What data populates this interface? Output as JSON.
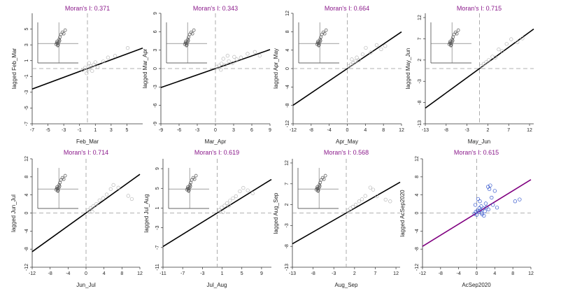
{
  "chart_data": [
    {
      "type": "scatter",
      "title": "Moran's I: 0.371",
      "xlabel": "Feb_Mar",
      "ylabel": "lagged Feb_Mar",
      "xlim": [
        -7,
        7
      ],
      "ylim": [
        -7,
        7
      ],
      "xticks": [
        -7,
        -5,
        -3,
        -1,
        1,
        3,
        5
      ],
      "yticks": [
        -7,
        -5,
        -3,
        -1,
        1,
        3,
        5
      ],
      "slope": 0.371,
      "color": "#000000",
      "points": [
        [
          -0.6,
          -0.2
        ],
        [
          -0.3,
          0.1
        ],
        [
          0.1,
          -0.1
        ],
        [
          0.4,
          0.3
        ],
        [
          0.8,
          0.5
        ],
        [
          1.3,
          0.2
        ],
        [
          2.0,
          0.9
        ],
        [
          2.6,
          1.4
        ],
        [
          3.5,
          1.6
        ],
        [
          5.1,
          2.6
        ],
        [
          0.2,
          0.7
        ],
        [
          -0.1,
          -0.6
        ],
        [
          0.6,
          -0.3
        ],
        [
          1.0,
          0.8
        ]
      ],
      "inset_points": [
        [
          -0.4,
          -0.1
        ],
        [
          -0.3,
          0.1
        ],
        [
          -0.2,
          0.0
        ],
        [
          -0.1,
          -0.2
        ],
        [
          0.0,
          0.2
        ],
        [
          0.05,
          0.6
        ],
        [
          0.15,
          0.9
        ],
        [
          0.3,
          1.3
        ],
        [
          0.5,
          1.6
        ],
        [
          0.7,
          1.4
        ],
        [
          0.9,
          1.9
        ],
        [
          -0.25,
          0.3
        ],
        [
          -0.15,
          -0.3
        ],
        [
          0.1,
          0.4
        ]
      ]
    },
    {
      "type": "scatter",
      "title": "Moran's I: 0.343",
      "xlabel": "Mar_Apr",
      "ylabel": "lagged Mar_Apr",
      "xlim": [
        -9,
        9
      ],
      "ylim": [
        -9,
        9
      ],
      "xticks": [
        -9,
        -6,
        -3,
        0,
        3,
        6,
        9
      ],
      "yticks": [
        -9,
        -6,
        -3,
        0,
        3,
        6,
        9
      ],
      "slope": 0.343,
      "color": "#000000",
      "points": [
        [
          0.2,
          0.3
        ],
        [
          0.6,
          0.5
        ],
        [
          1.0,
          0.8
        ],
        [
          1.6,
          0.6
        ],
        [
          2.2,
          1.2
        ],
        [
          2.8,
          0.9
        ],
        [
          3.5,
          1.5
        ],
        [
          4.2,
          1.8
        ],
        [
          5.3,
          2.4
        ],
        [
          6.5,
          2.7
        ],
        [
          7.3,
          2.1
        ],
        [
          1.3,
          1.6
        ],
        [
          0.9,
          -0.2
        ],
        [
          2.0,
          2.1
        ],
        [
          3.1,
          1.9
        ]
      ],
      "inset_points": [
        [
          -0.4,
          -0.1
        ],
        [
          -0.3,
          0.1
        ],
        [
          -0.2,
          0.0
        ],
        [
          -0.1,
          -0.2
        ],
        [
          0.0,
          0.2
        ],
        [
          0.05,
          0.6
        ],
        [
          0.15,
          0.9
        ],
        [
          0.3,
          1.3
        ],
        [
          0.5,
          1.6
        ],
        [
          0.7,
          1.4
        ],
        [
          0.9,
          1.9
        ],
        [
          -0.25,
          0.3
        ],
        [
          -0.15,
          -0.3
        ],
        [
          0.1,
          0.4
        ]
      ]
    },
    {
      "type": "scatter",
      "title": "Moran's I: 0.664",
      "xlabel": "Apr_May",
      "ylabel": "lagged Apr_May",
      "xlim": [
        -12,
        12
      ],
      "ylim": [
        -12,
        12
      ],
      "xticks": [
        -12,
        -8,
        -4,
        0,
        4,
        8,
        12
      ],
      "yticks": [
        -12,
        -8,
        -4,
        0,
        4,
        8,
        12
      ],
      "slope": 0.664,
      "color": "#000000",
      "points": [
        [
          0.3,
          0.5
        ],
        [
          0.8,
          0.9
        ],
        [
          1.3,
          1.2
        ],
        [
          1.8,
          1.6
        ],
        [
          2.6,
          1.8
        ],
        [
          3.4,
          3.1
        ],
        [
          4.1,
          4.5
        ],
        [
          5.2,
          3.5
        ],
        [
          6.5,
          5.1
        ],
        [
          7.5,
          4.2
        ],
        [
          8.4,
          4.9
        ],
        [
          1.0,
          2.0
        ],
        [
          2.1,
          2.4
        ]
      ],
      "inset_points": [
        [
          -0.4,
          -0.1
        ],
        [
          -0.3,
          0.1
        ],
        [
          -0.2,
          0.0
        ],
        [
          -0.1,
          -0.2
        ],
        [
          0.0,
          0.2
        ],
        [
          0.05,
          0.6
        ],
        [
          0.15,
          0.9
        ],
        [
          0.3,
          1.3
        ],
        [
          0.5,
          1.6
        ],
        [
          0.7,
          1.4
        ],
        [
          0.9,
          1.9
        ],
        [
          -0.25,
          0.3
        ],
        [
          -0.15,
          -0.3
        ],
        [
          0.1,
          0.4
        ]
      ]
    },
    {
      "type": "scatter",
      "title": "Moran's I: 0.715",
      "xlabel": "May_Jun",
      "ylabel": "lagged May_Jun",
      "xlim": [
        -13,
        13
      ],
      "ylim": [
        -13,
        13
      ],
      "xticks": [
        -13,
        -8,
        -3,
        2,
        7,
        12
      ],
      "yticks": [
        -13,
        -8,
        -3,
        2,
        7,
        12
      ],
      "slope": 0.715,
      "color": "#000000",
      "points": [
        [
          0.4,
          0.6
        ],
        [
          1.0,
          1.1
        ],
        [
          1.6,
          1.5
        ],
        [
          2.2,
          2.0
        ],
        [
          3.1,
          2.8
        ],
        [
          3.8,
          2.6
        ],
        [
          4.6,
          4.5
        ],
        [
          5.4,
          4.1
        ],
        [
          6.5,
          5.8
        ],
        [
          7.6,
          6.9
        ],
        [
          9.1,
          6.2
        ],
        [
          10.3,
          7.1
        ]
      ],
      "inset_points": [
        [
          -0.4,
          -0.1
        ],
        [
          -0.3,
          0.1
        ],
        [
          -0.2,
          0.0
        ],
        [
          -0.1,
          -0.2
        ],
        [
          0.0,
          0.2
        ],
        [
          0.05,
          0.6
        ],
        [
          0.15,
          0.9
        ],
        [
          0.3,
          1.3
        ],
        [
          0.5,
          1.6
        ],
        [
          0.7,
          1.4
        ],
        [
          0.9,
          1.9
        ],
        [
          -0.25,
          0.3
        ],
        [
          -0.15,
          -0.3
        ],
        [
          0.1,
          0.4
        ]
      ]
    },
    {
      "type": "scatter",
      "title": "Moran's I: 0.714",
      "xlabel": "Jun_Jul",
      "ylabel": "lagged Jun_Jul",
      "xlim": [
        -12,
        12
      ],
      "ylim": [
        -12,
        12
      ],
      "xticks": [
        -12,
        -8,
        -4,
        0,
        4,
        8,
        12
      ],
      "yticks": [
        -12,
        -8,
        -4,
        0,
        4,
        8,
        12
      ],
      "slope": 0.714,
      "color": "#000000",
      "points": [
        [
          0.4,
          0.6
        ],
        [
          1.0,
          1.1
        ],
        [
          1.6,
          1.5
        ],
        [
          2.3,
          2.0
        ],
        [
          3.0,
          2.8
        ],
        [
          3.8,
          3.3
        ],
        [
          4.6,
          4.1
        ],
        [
          5.5,
          5.3
        ],
        [
          6.1,
          6.2
        ],
        [
          7.2,
          5.6
        ],
        [
          9.4,
          3.8
        ],
        [
          10.2,
          3.1
        ],
        [
          1.4,
          0.3
        ]
      ],
      "inset_points": [
        [
          -0.4,
          -0.1
        ],
        [
          -0.3,
          0.1
        ],
        [
          -0.2,
          0.0
        ],
        [
          -0.1,
          -0.2
        ],
        [
          0.0,
          0.2
        ],
        [
          0.05,
          0.6
        ],
        [
          0.15,
          0.9
        ],
        [
          0.3,
          1.3
        ],
        [
          0.5,
          1.6
        ],
        [
          0.7,
          1.4
        ],
        [
          0.9,
          1.9
        ],
        [
          -0.25,
          0.3
        ],
        [
          -0.15,
          -0.3
        ],
        [
          0.1,
          0.4
        ]
      ]
    },
    {
      "type": "scatter",
      "title": "Moran's I: 0.619",
      "xlabel": "Jul_Aug",
      "ylabel": "lagged Jul_Aug",
      "xlim": [
        -11,
        11
      ],
      "ylim": [
        -11,
        11
      ],
      "xticks": [
        -11,
        -7,
        -3,
        1,
        5,
        9
      ],
      "yticks": [
        -11,
        -7,
        -3,
        1,
        5,
        9
      ],
      "slope": 0.619,
      "color": "#000000",
      "points": [
        [
          0.4,
          0.6
        ],
        [
          0.9,
          1.1
        ],
        [
          1.5,
          1.5
        ],
        [
          2.0,
          2.0
        ],
        [
          2.6,
          2.5
        ],
        [
          3.2,
          3.0
        ],
        [
          3.8,
          3.4
        ],
        [
          4.6,
          4.4
        ],
        [
          5.3,
          5.1
        ],
        [
          6.2,
          4.6
        ],
        [
          7.2,
          4.0
        ],
        [
          1.2,
          0.2
        ],
        [
          2.4,
          1.5
        ]
      ],
      "inset_points": [
        [
          -0.4,
          -0.1
        ],
        [
          -0.3,
          0.1
        ],
        [
          -0.2,
          0.0
        ],
        [
          -0.1,
          -0.2
        ],
        [
          0.0,
          0.2
        ],
        [
          0.05,
          0.6
        ],
        [
          0.15,
          0.9
        ],
        [
          0.3,
          1.3
        ],
        [
          0.5,
          1.6
        ],
        [
          0.7,
          1.4
        ],
        [
          0.9,
          1.9
        ],
        [
          -0.25,
          0.3
        ],
        [
          -0.15,
          -0.3
        ],
        [
          0.1,
          0.4
        ]
      ]
    },
    {
      "type": "scatter",
      "title": "Moran's I: 0.568",
      "xlabel": "Aug_Sep",
      "ylabel": "lagged Aug_Sep",
      "xlim": [
        -13,
        13
      ],
      "ylim": [
        -13,
        13
      ],
      "xticks": [
        -13,
        -8,
        -3,
        2,
        7,
        12
      ],
      "yticks": [
        -13,
        -8,
        -3,
        2,
        7,
        12
      ],
      "slope": 0.568,
      "color": "#000000",
      "points": [
        [
          0.4,
          0.6
        ],
        [
          1.0,
          1.1
        ],
        [
          1.6,
          1.5
        ],
        [
          2.3,
          2.0
        ],
        [
          3.1,
          2.8
        ],
        [
          3.8,
          3.3
        ],
        [
          4.6,
          4.1
        ],
        [
          5.8,
          6.1
        ],
        [
          6.5,
          5.6
        ],
        [
          7.4,
          4.0
        ],
        [
          9.5,
          3.2
        ],
        [
          10.6,
          2.8
        ]
      ],
      "inset_points": [
        [
          -0.4,
          -0.1
        ],
        [
          -0.3,
          0.1
        ],
        [
          -0.2,
          0.0
        ],
        [
          -0.1,
          -0.2
        ],
        [
          0.0,
          0.2
        ],
        [
          0.05,
          0.6
        ],
        [
          0.15,
          0.9
        ],
        [
          0.3,
          1.3
        ],
        [
          0.5,
          1.6
        ],
        [
          0.7,
          1.4
        ],
        [
          0.9,
          1.9
        ],
        [
          -0.25,
          0.3
        ],
        [
          -0.15,
          -0.3
        ],
        [
          0.1,
          0.4
        ]
      ]
    },
    {
      "type": "scatter",
      "title": "Moran's I: 0.615",
      "xlabel": "AcSep2020",
      "ylabel": "lagged AcSep2020",
      "xlim": [
        -12,
        12
      ],
      "ylim": [
        -12,
        12
      ],
      "xticks": [
        -12,
        -8,
        -4,
        0,
        4,
        8,
        12
      ],
      "yticks": [
        -12,
        -8,
        -4,
        0,
        4,
        8,
        12
      ],
      "slope": 0.615,
      "color": "#800080",
      "point_color": "#3355cc",
      "points": [
        [
          -0.5,
          -0.2
        ],
        [
          -0.2,
          0.3
        ],
        [
          0.0,
          -0.4
        ],
        [
          0.2,
          0.5
        ],
        [
          0.4,
          0.2
        ],
        [
          0.6,
          1.1
        ],
        [
          0.8,
          0.6
        ],
        [
          1.0,
          1.5
        ],
        [
          1.2,
          -0.3
        ],
        [
          1.5,
          1.0
        ],
        [
          1.8,
          0.4
        ],
        [
          2.0,
          2.1
        ],
        [
          2.2,
          1.3
        ],
        [
          2.5,
          5.8
        ],
        [
          2.8,
          5.3
        ],
        [
          3.0,
          6.1
        ],
        [
          3.3,
          3.4
        ],
        [
          3.6,
          1.8
        ],
        [
          4.0,
          4.9
        ],
        [
          4.5,
          1.2
        ],
        [
          0.3,
          3.1
        ],
        [
          0.7,
          2.6
        ],
        [
          1.1,
          0.0
        ],
        [
          -0.3,
          1.8
        ],
        [
          8.5,
          2.6
        ],
        [
          9.5,
          3.0
        ],
        [
          1.6,
          -0.6
        ],
        [
          2.6,
          0.8
        ]
      ],
      "inset_points": []
    }
  ]
}
